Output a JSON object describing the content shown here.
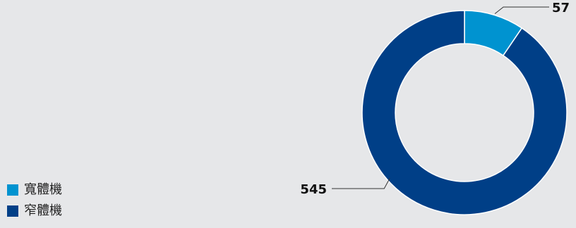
{
  "chart_data": {
    "type": "pie",
    "donut": true,
    "title": "",
    "categories": [
      "寬體機",
      "窄體機"
    ],
    "values": [
      57,
      545
    ],
    "data_labels": [
      "57",
      "545"
    ],
    "colors": [
      "#0093d0",
      "#003f87"
    ],
    "legend_placement": "bottom-left"
  },
  "legend": {
    "items": [
      {
        "label": "寬體機",
        "color": "#0093d0"
      },
      {
        "label": "窄體機",
        "color": "#003f87"
      }
    ]
  }
}
